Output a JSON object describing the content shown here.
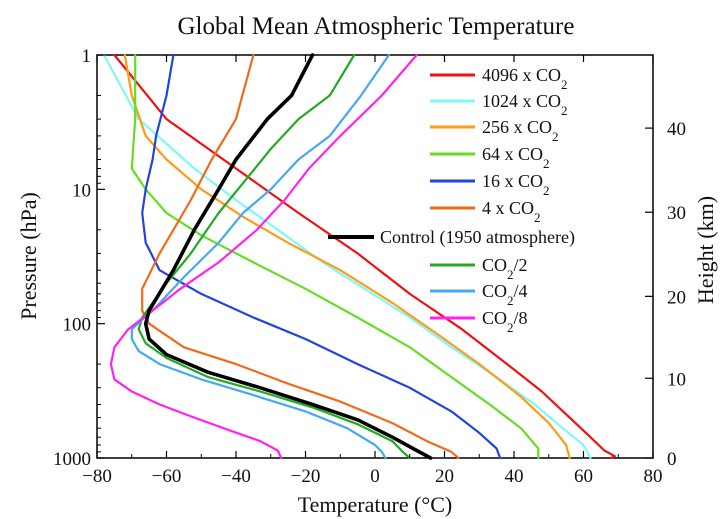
{
  "chart_data": {
    "type": "line",
    "title": "Global Mean Atmospheric Temperature",
    "xlabel": "Temperature (°C)",
    "ylabel": "Pressure (hPa)",
    "y2label": "Height (km)",
    "xlim": [
      -80,
      80
    ],
    "ylim": [
      1000,
      1
    ],
    "yscale": "log",
    "y_inverted": true,
    "x_ticks": [
      -80,
      -60,
      -40,
      -20,
      0,
      20,
      40,
      60,
      80
    ],
    "x_tick_labels": [
      "−80",
      "−60",
      "−40",
      "−20",
      "0",
      "20",
      "40",
      "60",
      "80"
    ],
    "y_ticks": [
      1,
      10,
      100,
      1000
    ],
    "y_tick_labels": [
      "1",
      "10",
      "100",
      "1000"
    ],
    "y2_ticks_km": [
      0,
      10,
      20,
      30,
      40
    ],
    "y2_tick_labels": [
      "0",
      "10",
      "20",
      "30",
      "40"
    ],
    "y2_tick_pressures_hpa": [
      1000,
      255,
      62.6,
      14.8,
      3.5
    ],
    "grid": false,
    "legend_position": "right",
    "series": [
      {
        "name": "4096 x CO2",
        "label_base": "4096 x CO",
        "label_sub": "2",
        "color": "#ee1111",
        "width": 2.2,
        "points": [
          [
            -75,
            1
          ],
          [
            -60,
            3
          ],
          [
            -40,
            7
          ],
          [
            -22,
            15
          ],
          [
            -5,
            30
          ],
          [
            10,
            60
          ],
          [
            25,
            110
          ],
          [
            38,
            200
          ],
          [
            48,
            320
          ],
          [
            56,
            500
          ],
          [
            62,
            700
          ],
          [
            66,
            880
          ],
          [
            69,
            970
          ],
          [
            68,
            1000
          ]
        ]
      },
      {
        "name": "1024 x CO2",
        "label_base": "1024 x CO",
        "label_sub": "2",
        "color": "#7ff8f8",
        "width": 2.2,
        "points": [
          [
            -78,
            1
          ],
          [
            -68,
            3
          ],
          [
            -52,
            7
          ],
          [
            -40,
            12
          ],
          [
            -28,
            20
          ],
          [
            -15,
            35
          ],
          [
            -3,
            55
          ],
          [
            10,
            90
          ],
          [
            22,
            150
          ],
          [
            35,
            250
          ],
          [
            46,
            400
          ],
          [
            54,
            600
          ],
          [
            60,
            800
          ],
          [
            62,
            1000
          ]
        ]
      },
      {
        "name": "256 x CO2",
        "label_base": "256 x CO",
        "label_sub": "2",
        "color": "#ff9a1a",
        "width": 2.2,
        "points": [
          [
            -72,
            1
          ],
          [
            -70,
            2
          ],
          [
            -66,
            4
          ],
          [
            -60,
            6
          ],
          [
            -50,
            10
          ],
          [
            -38,
            16
          ],
          [
            -25,
            25
          ],
          [
            -10,
            40
          ],
          [
            5,
            70
          ],
          [
            18,
            120
          ],
          [
            30,
            200
          ],
          [
            42,
            350
          ],
          [
            50,
            550
          ],
          [
            55,
            800
          ],
          [
            56,
            1000
          ]
        ]
      },
      {
        "name": "64 x CO2",
        "label_base": "64 x CO",
        "label_sub": "2",
        "color": "#66dd22",
        "width": 2.2,
        "points": [
          [
            -69,
            1
          ],
          [
            -69,
            3
          ],
          [
            -70,
            7
          ],
          [
            -66,
            10
          ],
          [
            -60,
            15
          ],
          [
            -50,
            22
          ],
          [
            -35,
            35
          ],
          [
            -20,
            55
          ],
          [
            -5,
            90
          ],
          [
            10,
            150
          ],
          [
            22,
            250
          ],
          [
            33,
            400
          ],
          [
            42,
            600
          ],
          [
            47,
            850
          ],
          [
            47,
            1000
          ]
        ]
      },
      {
        "name": "16 x CO2",
        "label_base": "16 x CO",
        "label_sub": "2",
        "color": "#2244dd",
        "width": 2.2,
        "points": [
          [
            -58,
            1
          ],
          [
            -60,
            2
          ],
          [
            -63,
            4
          ],
          [
            -64,
            6
          ],
          [
            -66,
            10
          ],
          [
            -67,
            15
          ],
          [
            -66,
            25
          ],
          [
            -62,
            40
          ],
          [
            -50,
            60
          ],
          [
            -35,
            90
          ],
          [
            -20,
            130
          ],
          [
            -5,
            200
          ],
          [
            10,
            300
          ],
          [
            22,
            450
          ],
          [
            30,
            650
          ],
          [
            35,
            850
          ],
          [
            36,
            1000
          ]
        ]
      },
      {
        "name": "4 x CO2",
        "label_base": "4 x CO",
        "label_sub": "2",
        "color": "#f06a1a",
        "width": 2.2,
        "points": [
          [
            -35,
            1
          ],
          [
            -40,
            3
          ],
          [
            -47,
            6
          ],
          [
            -53,
            12
          ],
          [
            -58,
            20
          ],
          [
            -62,
            30
          ],
          [
            -67,
            55
          ],
          [
            -67,
            80
          ],
          [
            -65,
            100
          ],
          [
            -55,
            150
          ],
          [
            -40,
            200
          ],
          [
            -25,
            280
          ],
          [
            -10,
            380
          ],
          [
            5,
            550
          ],
          [
            15,
            750
          ],
          [
            22,
            900
          ],
          [
            24,
            1000
          ]
        ]
      },
      {
        "name": "Control (1950 atmosphere)",
        "label_base": "Control (1950 atmosphere)",
        "label_sub": "",
        "color": "#000000",
        "width": 3.6,
        "points": [
          [
            -18,
            1
          ],
          [
            -24,
            2
          ],
          [
            -31,
            3
          ],
          [
            -40,
            6
          ],
          [
            -45,
            10
          ],
          [
            -52,
            20
          ],
          [
            -58,
            40
          ],
          [
            -65,
            80
          ],
          [
            -66,
            100
          ],
          [
            -65,
            130
          ],
          [
            -60,
            170
          ],
          [
            -48,
            230
          ],
          [
            -33,
            300
          ],
          [
            -18,
            400
          ],
          [
            -5,
            520
          ],
          [
            5,
            700
          ],
          [
            12,
            880
          ],
          [
            16,
            1000
          ]
        ]
      },
      {
        "name": "CO2/2",
        "label_base": "CO",
        "label_sub": "2",
        "label_suffix": "/2",
        "color": "#22aa22",
        "width": 2.2,
        "points": [
          [
            -6,
            1
          ],
          [
            -13,
            2
          ],
          [
            -22,
            3
          ],
          [
            -30,
            5
          ],
          [
            -38,
            9
          ],
          [
            -45,
            15
          ],
          [
            -53,
            30
          ],
          [
            -60,
            50
          ],
          [
            -67,
            90
          ],
          [
            -68,
            110
          ],
          [
            -66,
            140
          ],
          [
            -60,
            180
          ],
          [
            -48,
            250
          ],
          [
            -33,
            320
          ],
          [
            -18,
            420
          ],
          [
            -5,
            560
          ],
          [
            5,
            750
          ],
          [
            8,
            900
          ],
          [
            10,
            1000
          ]
        ]
      },
      {
        "name": "CO2/4",
        "label_base": "CO",
        "label_sub": "2",
        "label_suffix": "/4",
        "color": "#44aaee",
        "width": 2.2,
        "points": [
          [
            4,
            1
          ],
          [
            -4,
            2
          ],
          [
            -13,
            4
          ],
          [
            -22,
            6
          ],
          [
            -30,
            10
          ],
          [
            -38,
            15
          ],
          [
            -45,
            25
          ],
          [
            -55,
            45
          ],
          [
            -63,
            75
          ],
          [
            -70,
            110
          ],
          [
            -70,
            130
          ],
          [
            -68,
            160
          ],
          [
            -62,
            200
          ],
          [
            -50,
            260
          ],
          [
            -35,
            340
          ],
          [
            -20,
            450
          ],
          [
            -8,
            600
          ],
          [
            0,
            800
          ],
          [
            2,
            900
          ],
          [
            3,
            1000
          ]
        ]
      },
      {
        "name": "CO2/8",
        "label_base": "CO",
        "label_sub": "2",
        "label_suffix": "/8",
        "color": "#ff22ee",
        "width": 2.2,
        "points": [
          [
            12,
            1
          ],
          [
            2,
            2
          ],
          [
            -10,
            4
          ],
          [
            -19,
            7
          ],
          [
            -26,
            12
          ],
          [
            -34,
            20
          ],
          [
            -45,
            35
          ],
          [
            -56,
            55
          ],
          [
            -64,
            80
          ],
          [
            -71,
            110
          ],
          [
            -75,
            150
          ],
          [
            -76,
            200
          ],
          [
            -75,
            260
          ],
          [
            -70,
            320
          ],
          [
            -62,
            400
          ],
          [
            -52,
            500
          ],
          [
            -42,
            620
          ],
          [
            -33,
            750
          ],
          [
            -28,
            880
          ],
          [
            -27,
            1000
          ]
        ]
      }
    ]
  }
}
